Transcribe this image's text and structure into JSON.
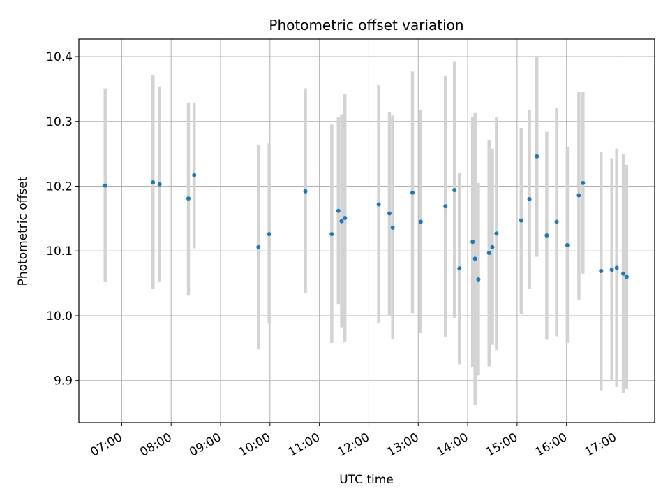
{
  "chart_data": {
    "type": "scatter",
    "title": "Photometric offset variation",
    "xlabel": "UTC time",
    "ylabel": "Photometric offset",
    "x_tick_labels": [
      "07:00",
      "08:00",
      "09:00",
      "10:00",
      "11:00",
      "12:00",
      "13:00",
      "14:00",
      "15:00",
      "16:00",
      "17:00"
    ],
    "y_tick_labels": [
      "9.9",
      "10.0",
      "10.1",
      "10.2",
      "10.3",
      "10.4"
    ],
    "y_ticks": [
      9.9,
      10.0,
      10.1,
      10.2,
      10.3,
      10.4
    ],
    "xlim": [
      "06:08",
      "17:47"
    ],
    "ylim": [
      9.835,
      10.427
    ],
    "grid": true,
    "marker_color": "#1f77b4",
    "errorbar_color": "#d3d3d3",
    "points": [
      {
        "x": "06:40",
        "y": 10.201,
        "ylow": 10.052,
        "yhigh": 10.351
      },
      {
        "x": "07:38",
        "y": 10.206,
        "ylow": 10.042,
        "yhigh": 10.371
      },
      {
        "x": "07:46",
        "y": 10.203,
        "ylow": 10.053,
        "yhigh": 10.354
      },
      {
        "x": "08:21",
        "y": 10.181,
        "ylow": 10.032,
        "yhigh": 10.329
      },
      {
        "x": "08:28",
        "y": 10.217,
        "ylow": 10.104,
        "yhigh": 10.329
      },
      {
        "x": "09:46",
        "y": 10.106,
        "ylow": 9.948,
        "yhigh": 10.264
      },
      {
        "x": "09:59",
        "y": 10.126,
        "ylow": 9.988,
        "yhigh": 10.266
      },
      {
        "x": "10:43",
        "y": 10.192,
        "ylow": 10.035,
        "yhigh": 10.351
      },
      {
        "x": "11:15",
        "y": 10.126,
        "ylow": 9.958,
        "yhigh": 10.295
      },
      {
        "x": "11:23",
        "y": 10.162,
        "ylow": 10.018,
        "yhigh": 10.307
      },
      {
        "x": "11:27",
        "y": 10.146,
        "ylow": 9.982,
        "yhigh": 10.311
      },
      {
        "x": "11:31",
        "y": 10.151,
        "ylow": 9.96,
        "yhigh": 10.342
      },
      {
        "x": "12:12",
        "y": 10.172,
        "ylow": 9.988,
        "yhigh": 10.356
      },
      {
        "x": "12:25",
        "y": 10.158,
        "ylow": 10.001,
        "yhigh": 10.315
      },
      {
        "x": "12:29",
        "y": 10.136,
        "ylow": 9.964,
        "yhigh": 10.309
      },
      {
        "x": "12:53",
        "y": 10.19,
        "ylow": 10.004,
        "yhigh": 10.377
      },
      {
        "x": "13:03",
        "y": 10.145,
        "ylow": 9.973,
        "yhigh": 10.317
      },
      {
        "x": "13:33",
        "y": 10.169,
        "ylow": 9.967,
        "yhigh": 10.37
      },
      {
        "x": "13:44",
        "y": 10.194,
        "ylow": 9.997,
        "yhigh": 10.392
      },
      {
        "x": "13:50",
        "y": 10.073,
        "ylow": 9.925,
        "yhigh": 10.221
      },
      {
        "x": "14:06",
        "y": 10.114,
        "ylow": 9.921,
        "yhigh": 10.307
      },
      {
        "x": "14:09",
        "y": 10.088,
        "ylow": 9.862,
        "yhigh": 10.313
      },
      {
        "x": "14:13",
        "y": 10.056,
        "ylow": 9.908,
        "yhigh": 10.205
      },
      {
        "x": "14:26",
        "y": 10.097,
        "ylow": 9.922,
        "yhigh": 10.271
      },
      {
        "x": "14:30",
        "y": 10.106,
        "ylow": 9.955,
        "yhigh": 10.258
      },
      {
        "x": "14:35",
        "y": 10.127,
        "ylow": 9.947,
        "yhigh": 10.307
      },
      {
        "x": "15:05",
        "y": 10.147,
        "ylow": 10.003,
        "yhigh": 10.29
      },
      {
        "x": "15:15",
        "y": 10.18,
        "ylow": 10.041,
        "yhigh": 10.317
      },
      {
        "x": "15:24",
        "y": 10.246,
        "ylow": 10.091,
        "yhigh": 10.399
      },
      {
        "x": "15:36",
        "y": 10.124,
        "ylow": 9.964,
        "yhigh": 10.284
      },
      {
        "x": "15:48",
        "y": 10.145,
        "ylow": 9.968,
        "yhigh": 10.321
      },
      {
        "x": "16:01",
        "y": 10.109,
        "ylow": 9.958,
        "yhigh": 10.261
      },
      {
        "x": "16:15",
        "y": 10.186,
        "ylow": 10.025,
        "yhigh": 10.346
      },
      {
        "x": "16:20",
        "y": 10.205,
        "ylow": 10.065,
        "yhigh": 10.345
      },
      {
        "x": "16:42",
        "y": 10.069,
        "ylow": 9.885,
        "yhigh": 10.253
      },
      {
        "x": "16:55",
        "y": 10.071,
        "ylow": 9.899,
        "yhigh": 10.243
      },
      {
        "x": "17:01",
        "y": 10.074,
        "ylow": 9.89,
        "yhigh": 10.258
      },
      {
        "x": "17:09",
        "y": 10.065,
        "ylow": 9.881,
        "yhigh": 10.249
      },
      {
        "x": "17:13",
        "y": 10.06,
        "ylow": 9.887,
        "yhigh": 10.233
      }
    ]
  }
}
